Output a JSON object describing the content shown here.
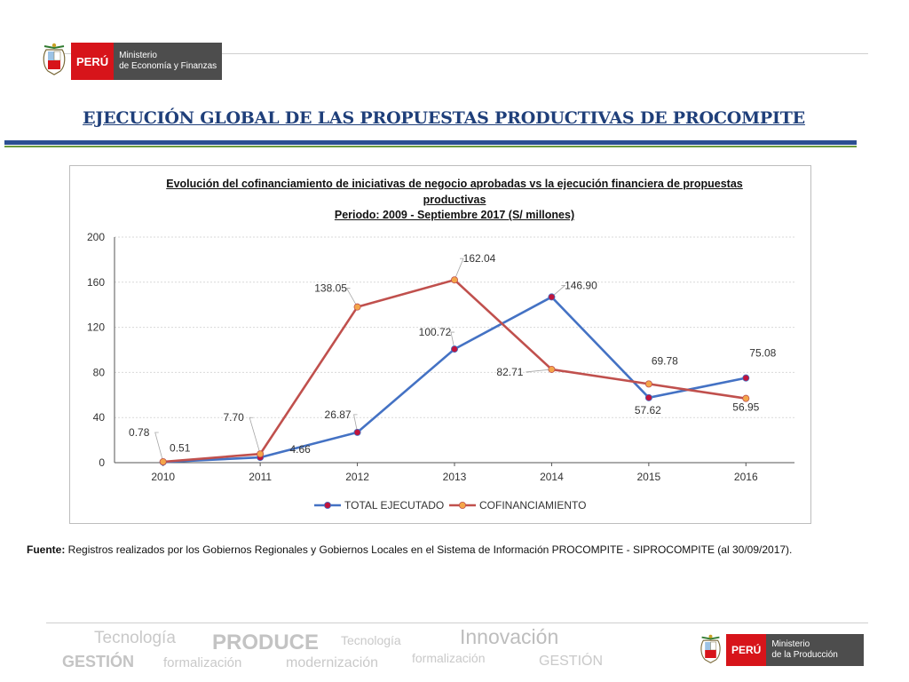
{
  "header": {
    "peru_label": "PERÚ",
    "ministry_line1": "Ministerio",
    "ministry_line2": "de Economía y Finanzas"
  },
  "page_title": "EJECUCIÓN GLOBAL DE LAS PROPUESTAS PRODUCTIVAS DE PROCOMPITE",
  "chart_data": {
    "type": "line",
    "title_line1": "Evolución del cofinanciamiento de iniciativas de negocio aprobadas  vs la ejecución financiera de propuestas",
    "title_line2": "productivas",
    "title_line3": "Periodo: 2009 -  Septiembre  2017 (S/ millones)",
    "categories": [
      "2010",
      "2011",
      "2012",
      "2013",
      "2014",
      "2015",
      "2016"
    ],
    "ylim": [
      0,
      200
    ],
    "yticks": [
      "0",
      "40",
      "80",
      "120",
      "160",
      "200"
    ],
    "grid": true,
    "legend_position": "bottom",
    "series": [
      {
        "name": "TOTAL EJECUTADO",
        "color": "#4472c4",
        "marker": "#c0143c",
        "values": [
          0.51,
          4.66,
          26.87,
          100.72,
          146.9,
          57.62,
          75.08
        ],
        "labels": [
          "0.51",
          "4.66",
          "26.87",
          "100.72",
          "146.90",
          "57.62",
          "75.08"
        ]
      },
      {
        "name": "COFINANCIAMIENTO",
        "color": "#c0504d",
        "marker": "#f4a64a",
        "values": [
          0.78,
          7.7,
          138.05,
          162.04,
          82.71,
          69.78,
          56.95
        ],
        "labels": [
          "0.78",
          "7.70",
          "138.05",
          "162.04",
          "82.71",
          "69.78",
          "56.95"
        ]
      }
    ]
  },
  "footnote": {
    "label": "Fuente:",
    "text": " Registros realizados por los Gobiernos Regionales y Gobiernos Locales en el Sistema de Información PROCOMPITE - SIPROCOMPITE (al  30/09/2017)."
  },
  "footer": {
    "peru_label": "PERÚ",
    "ministry_line1": "Ministerio",
    "ministry_line2": "de la Producción",
    "watermark_words": [
      "Tecnología",
      "PRODUCE",
      "Tecnología",
      "Innovación",
      "GESTIÓN",
      "formalización",
      "modernización",
      "formalización",
      "GESTIÓN"
    ]
  }
}
